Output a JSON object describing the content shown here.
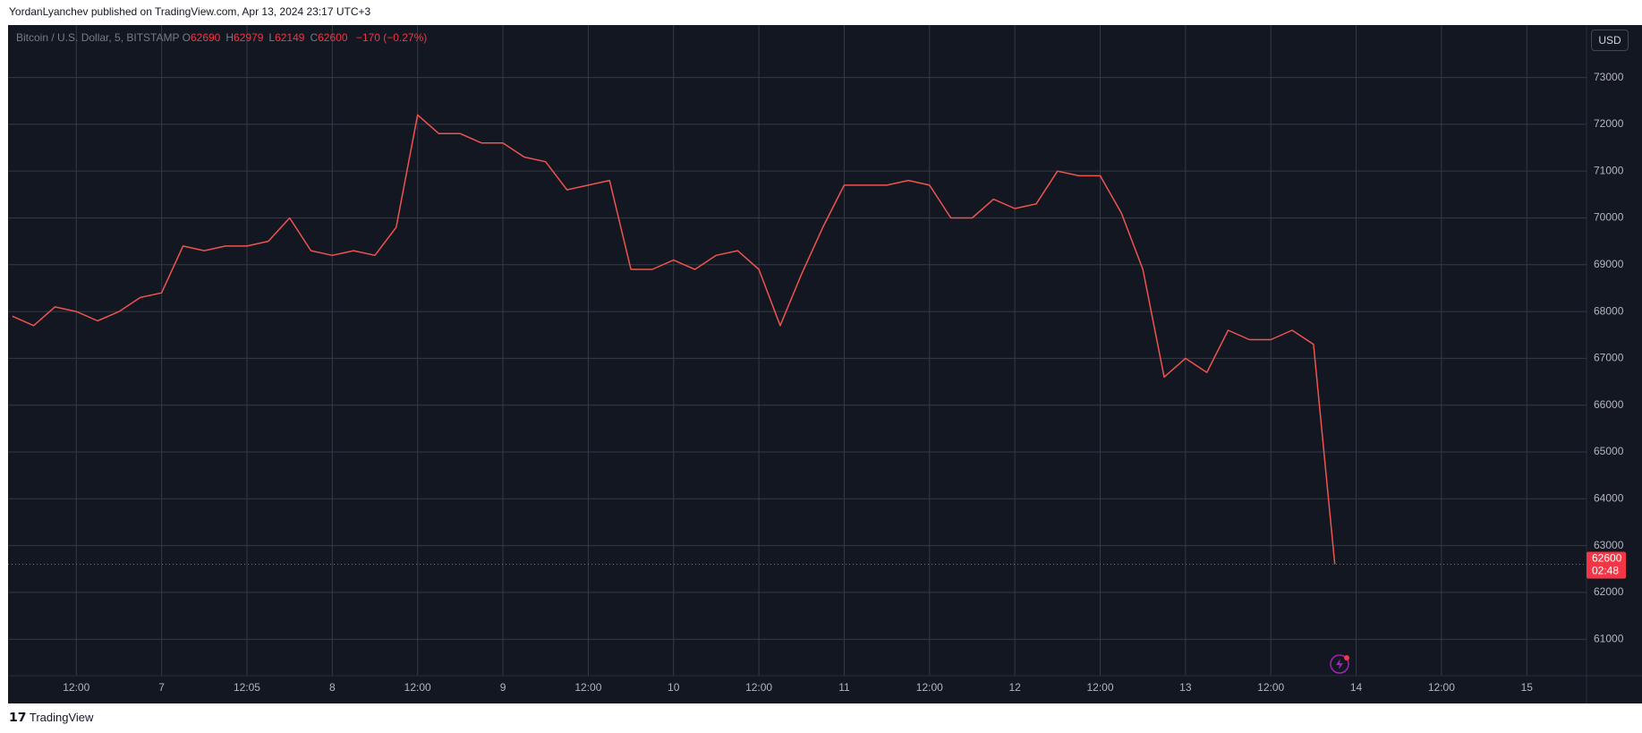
{
  "header": {
    "text": "YordanLyanchev published on TradingView.com, Apr 13, 2024 23:17 UTC+3"
  },
  "legend": {
    "symbol": "Bitcoin / U.S. Dollar, 5, BITSTAMP",
    "ohlc": [
      {
        "label": "O",
        "value": 62690
      },
      {
        "label": "H",
        "value": 62979
      },
      {
        "label": "L",
        "value": 62149
      },
      {
        "label": "C",
        "value": 62600
      }
    ],
    "change": "−170 (−0.27%)"
  },
  "currency_button": "USD",
  "chart_data": {
    "type": "line",
    "categories": [
      null,
      null,
      null,
      "12:00",
      null,
      null,
      null,
      "7",
      null,
      null,
      null,
      "12:05",
      null,
      null,
      null,
      "8",
      null,
      null,
      null,
      "12:00",
      null,
      null,
      null,
      "9",
      null,
      null,
      null,
      "12:00",
      null,
      null,
      null,
      "10",
      null,
      null,
      null,
      "12:00",
      null,
      null,
      null,
      "11",
      null,
      null,
      null,
      "12:00",
      null,
      null,
      null,
      "12",
      null,
      null,
      null,
      "12:00",
      null,
      null,
      null,
      "13",
      null,
      null,
      null,
      "12:00",
      null,
      null,
      null,
      "14",
      null,
      null,
      null,
      "12:00",
      null,
      null,
      null,
      "15",
      null,
      null
    ],
    "series": [
      {
        "color": "#ef5350",
        "values": [
          67900,
          67700,
          68100,
          68000,
          67800,
          68000,
          68300,
          68400,
          69400,
          69300,
          69400,
          69400,
          69500,
          70000,
          69300,
          69200,
          69300,
          69200,
          69800,
          72200,
          71800,
          71800,
          71600,
          71600,
          71300,
          71200,
          70600,
          70700,
          70800,
          68900,
          68900,
          69100,
          68900,
          69200,
          69300,
          68900,
          67700,
          68800,
          69800,
          70700,
          70700,
          70700,
          70800,
          70700,
          70000,
          70000,
          70400,
          70200,
          70300,
          71000,
          70900,
          70900,
          70100,
          68900,
          66600,
          67000,
          66700,
          67600,
          67400,
          67400,
          67600,
          67300,
          62600,
          null,
          null,
          null,
          null,
          null,
          null,
          null,
          null,
          null,
          null,
          null
        ]
      }
    ],
    "ylim": [
      60220,
      74120
    ],
    "yticks": [
      61000,
      62000,
      63000,
      64000,
      65000,
      66000,
      67000,
      68000,
      69000,
      70000,
      71000,
      72000,
      73000
    ],
    "grid": true,
    "last_price": 62600,
    "last_price_color": "#f23645",
    "countdown": "02:48"
  },
  "footer": {
    "brand": "TradingView"
  }
}
